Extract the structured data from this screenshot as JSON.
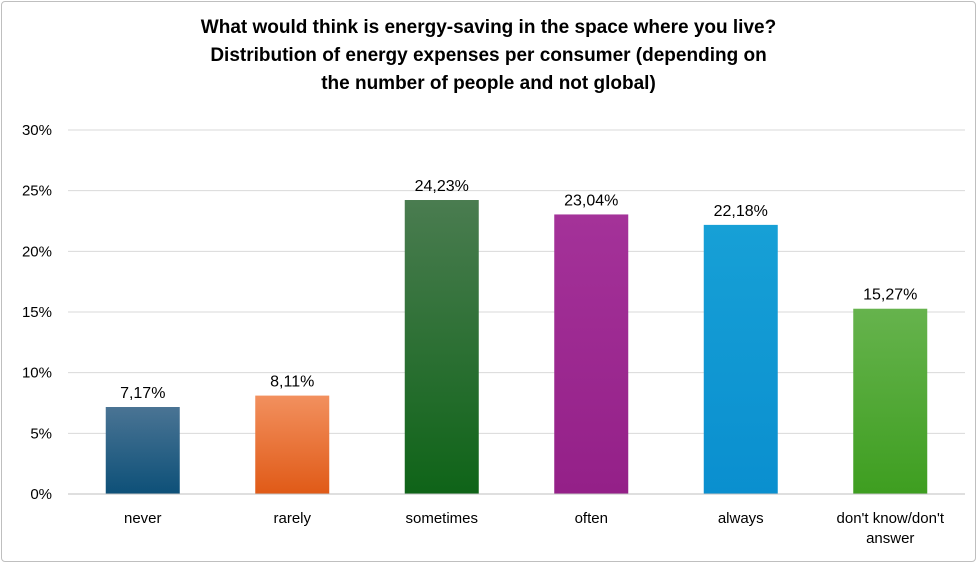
{
  "chart_data": {
    "type": "bar",
    "title_lines": [
      "What would think is energy-saving in the space where you live?",
      "Distribution of energy expenses per consumer (depending on",
      "the number of people and not global)"
    ],
    "categories": [
      [
        "never"
      ],
      [
        "rarely"
      ],
      [
        "sometimes"
      ],
      [
        "often"
      ],
      [
        "always"
      ],
      [
        "don't know/don't",
        "answer"
      ]
    ],
    "values": [
      7.17,
      8.11,
      24.23,
      23.04,
      22.18,
      15.27
    ],
    "value_labels": [
      "7,17%",
      "8,11%",
      "24,23%",
      "23,04%",
      "22,18%",
      "15,27%"
    ],
    "colors": [
      [
        "#4a7494",
        "#0d5078"
      ],
      [
        "#f2905e",
        "#e05a17"
      ],
      [
        "#4a7c50",
        "#0f6418"
      ],
      [
        "#a43299",
        "#942088"
      ],
      [
        "#17a0d6",
        "#0a8fcf"
      ],
      [
        "#66b34d",
        "#3e9e20"
      ]
    ],
    "yticks": [
      "0%",
      "5%",
      "10%",
      "15%",
      "20%",
      "25%",
      "30%"
    ],
    "ylim": [
      0,
      30
    ],
    "grid": true,
    "legend": "none"
  }
}
